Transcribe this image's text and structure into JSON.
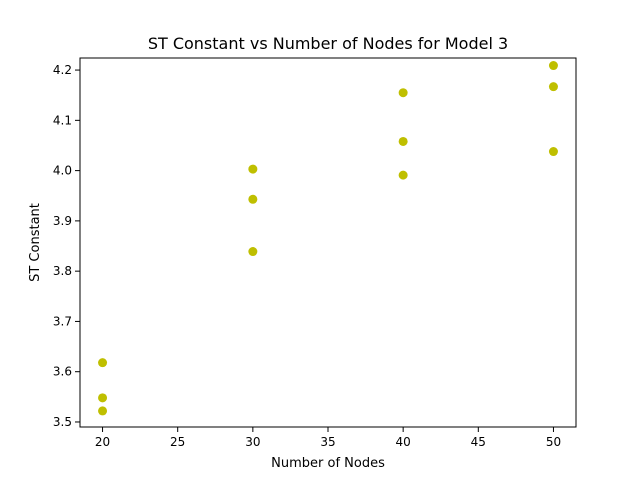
{
  "chart_data": {
    "type": "scatter",
    "title": "ST Constant vs Number of Nodes for Model 3",
    "xlabel": "Number of Nodes",
    "ylabel": "ST Constant",
    "xlim": [
      18.5,
      51.5
    ],
    "ylim": [
      3.49,
      4.224
    ],
    "xticks": [
      20,
      25,
      30,
      35,
      40,
      45,
      50
    ],
    "yticks": [
      3.5,
      3.6,
      3.7,
      3.8,
      3.9,
      4.0,
      4.1,
      4.2
    ],
    "ytick_labels": [
      "3.5",
      "3.6",
      "3.7",
      "3.8",
      "3.9",
      "4.0",
      "4.1",
      "4.2"
    ],
    "grid": false,
    "marker_color": "#bfbf00",
    "series": [
      {
        "x": [
          20,
          20,
          20,
          30,
          30,
          30,
          40,
          40,
          40,
          50,
          50,
          50
        ],
        "y": [
          3.618,
          3.548,
          3.522,
          4.003,
          3.943,
          3.839,
          4.155,
          4.058,
          3.991,
          4.209,
          4.167,
          4.038
        ]
      }
    ]
  }
}
